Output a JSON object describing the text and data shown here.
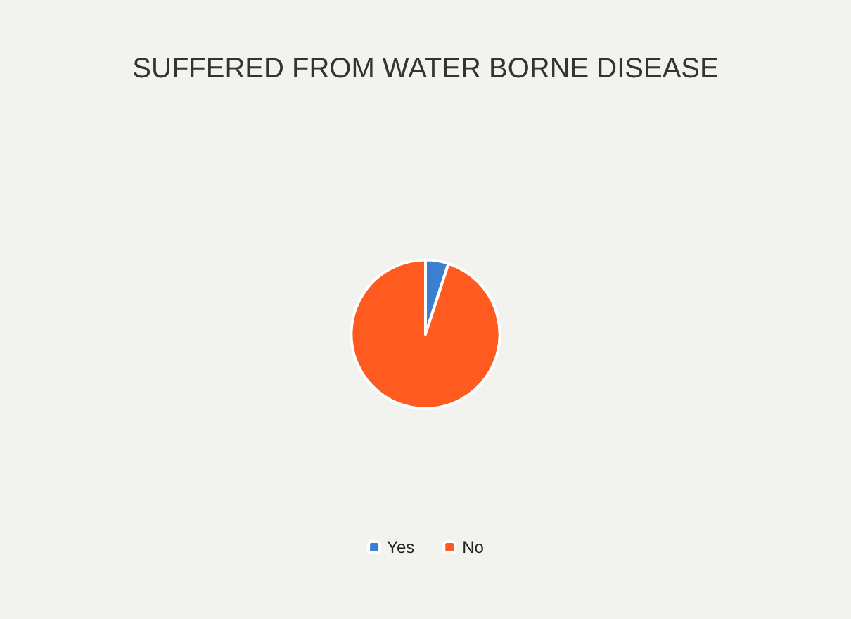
{
  "chart_data": {
    "type": "pie",
    "title": "SUFFERED FROM WATER BORNE DISEASE",
    "categories": [
      "Yes",
      "No"
    ],
    "values": [
      5,
      95
    ],
    "colors": [
      "#3a7fd0",
      "#ff5a1f"
    ],
    "legend": "bottom"
  }
}
